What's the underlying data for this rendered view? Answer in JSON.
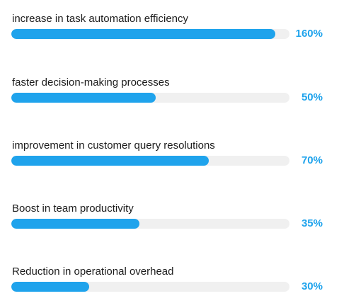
{
  "colors": {
    "bar": "#1fa3ec",
    "value_text": "#1fa3ec",
    "track": "#f0f0f0"
  },
  "chart_data": {
    "type": "bar",
    "orientation": "horizontal",
    "items": [
      {
        "label": "increase in task automation efficiency",
        "value_text": "160%",
        "fill_fraction": 0.95
      },
      {
        "label": "faster decision-making processes",
        "value_text": "50%",
        "fill_fraction": 0.52
      },
      {
        "label": "improvement in customer query resolutions",
        "value_text": "70%",
        "fill_fraction": 0.71
      },
      {
        "label": "Boost in team productivity",
        "value_text": "35%",
        "fill_fraction": 0.46
      },
      {
        "label": "Reduction in operational overhead",
        "value_text": "30%",
        "fill_fraction": 0.28
      }
    ]
  }
}
